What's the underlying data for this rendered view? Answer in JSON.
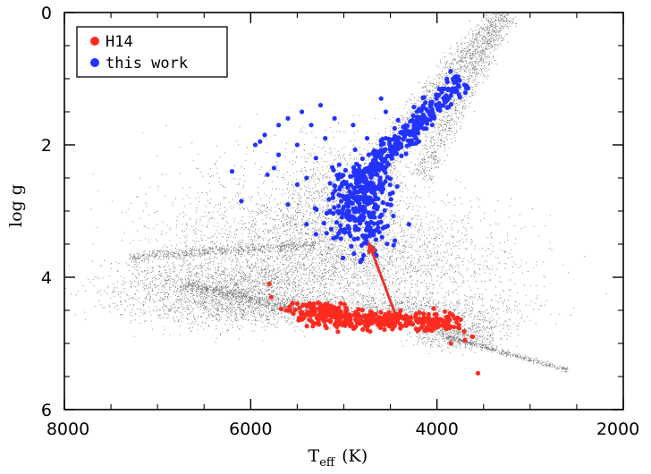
{
  "chart_data": {
    "type": "scatter",
    "title": "",
    "xlabel": {
      "main": "T",
      "sub": "eff",
      "unit": "(K)"
    },
    "ylabel": "log g",
    "xlim": [
      8000,
      2000
    ],
    "ylim": [
      0,
      6
    ],
    "x_inverted": true,
    "y_inverted": true,
    "xticks": [
      8000,
      6000,
      4000,
      2000
    ],
    "yticks": [
      0,
      2,
      4,
      6
    ],
    "legend": {
      "placement": "top-left",
      "entries": [
        "H14",
        "this work"
      ]
    },
    "series": [
      {
        "name": "",
        "color": "#000000",
        "marker": "tiny-dot",
        "regions": [
          {
            "center": [
              6300,
              4.25
            ],
            "spread": [
              600,
              0.25
            ],
            "weight": 1.6
          },
          {
            "center": [
              5200,
              3.4
            ],
            "spread": [
              900,
              0.35
            ],
            "weight": 1.0
          },
          {
            "center": [
              4900,
              3.9
            ],
            "spread": [
              900,
              0.25
            ],
            "weight": 0.8
          },
          {
            "center": [
              5000,
              2.9
            ],
            "spread": [
              350,
              0.5
            ],
            "weight": 0.8
          },
          {
            "center": [
              4700,
              4.5
            ],
            "spread": [
              800,
              0.12
            ],
            "weight": 1.0
          },
          {
            "center": [
              3800,
              4.85
            ],
            "spread": [
              250,
              0.12
            ],
            "weight": 0.5
          },
          {
            "center": [
              5800,
              3.1
            ],
            "spread": [
              800,
              0.6
            ],
            "weight": 0.4
          }
        ],
        "trails": [
          {
            "from": [
              4900,
              2.8
            ],
            "to": [
              3300,
              0.0
            ],
            "width": 180,
            "weight": 1.2
          },
          {
            "from": [
              4200,
              2.5
            ],
            "to": [
              3250,
              0.0
            ],
            "width": 140,
            "weight": 0.6
          },
          {
            "from": [
              7300,
              3.7
            ],
            "to": [
              5300,
              3.5
            ],
            "width": 0.08,
            "weight": 0.5
          },
          {
            "from": [
              3900,
              4.9
            ],
            "to": [
              2600,
              5.4
            ],
            "width": 0.04,
            "weight": 0.3
          },
          {
            "from": [
              6700,
              4.1
            ],
            "to": [
              5200,
              4.6
            ],
            "width": 0.08,
            "weight": 0.4
          }
        ]
      },
      {
        "name": "H14",
        "color": "#ff2a1f",
        "marker": "dot",
        "regions": [
          {
            "center": [
              4700,
              4.65
            ],
            "spread": [
              380,
              0.07
            ],
            "weight": 1.0
          },
          {
            "center": [
              5250,
              4.5
            ],
            "spread": [
              150,
              0.06
            ],
            "weight": 0.4
          },
          {
            "center": [
              4000,
              4.7
            ],
            "spread": [
              150,
              0.06
            ],
            "weight": 0.3
          }
        ],
        "points": [
          [
            5800,
            4.1
          ],
          [
            5780,
            4.3
          ],
          [
            5620,
            4.5
          ],
          [
            5500,
            4.4
          ],
          [
            3700,
            4.95
          ],
          [
            3560,
            5.45
          ],
          [
            3850,
            5.0
          ],
          [
            3620,
            4.9
          ]
        ]
      },
      {
        "name": "this work",
        "color": "#2233ff",
        "marker": "dot",
        "regions": [
          {
            "center": [
              4820,
              2.95
            ],
            "spread": [
              180,
              0.35
            ],
            "weight": 1.0
          }
        ],
        "trails": [
          {
            "from": [
              4850,
              2.6
            ],
            "to": [
              3750,
              1.0
            ],
            "width": 130,
            "weight": 1.0
          }
        ],
        "points": [
          [
            6200,
            2.4
          ],
          [
            6100,
            2.85
          ],
          [
            5950,
            2.0
          ],
          [
            5900,
            1.95
          ],
          [
            5820,
            2.45
          ],
          [
            5750,
            2.35
          ],
          [
            5700,
            1.7
          ],
          [
            5600,
            1.6
          ],
          [
            5500,
            2.0
          ],
          [
            5450,
            1.5
          ],
          [
            5400,
            2.5
          ],
          [
            5350,
            1.7
          ],
          [
            5300,
            2.2
          ],
          [
            5250,
            1.4
          ],
          [
            5200,
            1.9
          ],
          [
            5100,
            1.6
          ],
          [
            5600,
            2.9
          ],
          [
            5400,
            3.2
          ],
          [
            5300,
            3.35
          ],
          [
            5150,
            3.0
          ],
          [
            4600,
            1.3
          ],
          [
            4550,
            1.5
          ],
          [
            4650,
            2.1
          ],
          [
            4600,
            2.3
          ],
          [
            5850,
            1.85
          ],
          [
            5700,
            2.15
          ],
          [
            5500,
            2.6
          ],
          [
            4300,
            3.2
          ],
          [
            4750,
            1.9
          ],
          [
            4900,
            1.7
          ],
          [
            5050,
            2.3
          ],
          [
            4550,
            1.9
          ]
        ]
      }
    ],
    "annotation": {
      "type": "arrow",
      "color": "#e8352c",
      "from": [
        4450,
        4.55
      ],
      "to": [
        4740,
        3.45
      ]
    }
  }
}
